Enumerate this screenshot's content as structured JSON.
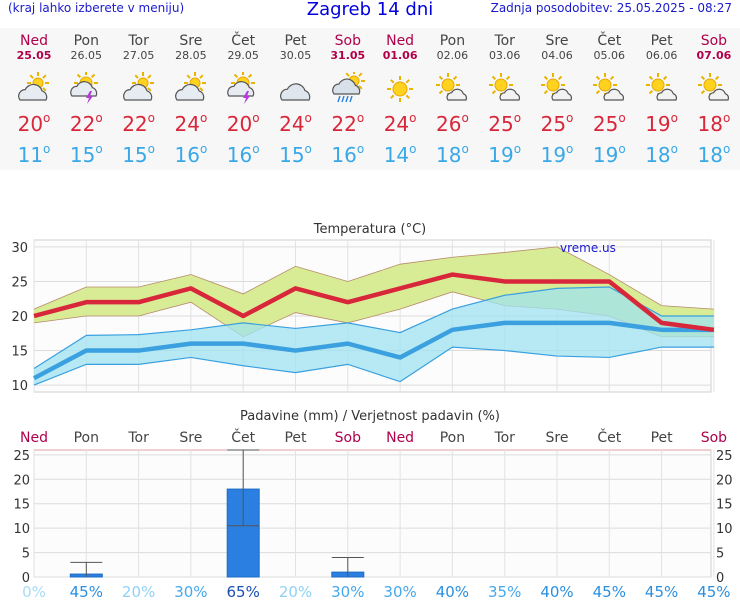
{
  "header": {
    "left_note": "(kraj lahko izberete v meniju)",
    "title": "Zagreb 14 dni",
    "updated": "Zadnja posodobitev: 25.05.2025 - 08:27"
  },
  "days": [
    {
      "name": "Ned",
      "date": "25.05",
      "weekend": true,
      "icon": "partly-cloudy-icon",
      "tmax": "20",
      "tmin": "11"
    },
    {
      "name": "Pon",
      "date": "26.05",
      "weekend": false,
      "icon": "sun-thunderstorm-icon",
      "tmax": "22",
      "tmin": "15"
    },
    {
      "name": "Tor",
      "date": "27.05",
      "weekend": false,
      "icon": "partly-cloudy-icon",
      "tmax": "22",
      "tmin": "15"
    },
    {
      "name": "Sre",
      "date": "28.05",
      "weekend": false,
      "icon": "partly-cloudy-icon",
      "tmax": "24",
      "tmin": "16"
    },
    {
      "name": "Čet",
      "date": "29.05",
      "weekend": false,
      "icon": "sun-thunderstorm-icon",
      "tmax": "20",
      "tmin": "16"
    },
    {
      "name": "Pet",
      "date": "30.05",
      "weekend": false,
      "icon": "cloudy-icon",
      "tmax": "24",
      "tmin": "15"
    },
    {
      "name": "Sob",
      "date": "31.05",
      "weekend": true,
      "icon": "sun-rain-cloud-icon",
      "tmax": "22",
      "tmin": "16"
    },
    {
      "name": "Ned",
      "date": "01.06",
      "weekend": true,
      "icon": "sunny-icon",
      "tmax": "24",
      "tmin": "14"
    },
    {
      "name": "Pon",
      "date": "02.06",
      "weekend": false,
      "icon": "sun-small-cloud-icon",
      "tmax": "26",
      "tmin": "18"
    },
    {
      "name": "Tor",
      "date": "03.06",
      "weekend": false,
      "icon": "sun-small-cloud-icon",
      "tmax": "25",
      "tmin": "19"
    },
    {
      "name": "Sre",
      "date": "04.06",
      "weekend": false,
      "icon": "sun-small-cloud-icon",
      "tmax": "25",
      "tmin": "19"
    },
    {
      "name": "Čet",
      "date": "05.06",
      "weekend": false,
      "icon": "sun-small-cloud-icon",
      "tmax": "25",
      "tmin": "19"
    },
    {
      "name": "Pet",
      "date": "06.06",
      "weekend": false,
      "icon": "sun-small-cloud-icon",
      "tmax": "19",
      "tmin": "18"
    },
    {
      "name": "Sob",
      "date": "07.06",
      "weekend": true,
      "icon": "sun-small-cloud-icon",
      "tmax": "18",
      "tmin": "18"
    }
  ],
  "colors": {
    "tmax": "#d8263a",
    "tmin": "#39a8e6",
    "weekend": "#b0004a",
    "max_band": "#d6ea8f",
    "min_band": "#9fe3f0",
    "overlap": "#86d38a",
    "bar": "#2a7fe0"
  },
  "chart_data": [
    {
      "type": "line",
      "title": "Temperatura (°C)",
      "watermark": "vreme.us",
      "ylim": [
        9,
        31
      ],
      "yticks": [
        10,
        15,
        20,
        25,
        30
      ],
      "grid": true,
      "series": [
        {
          "values": [
            20,
            22,
            22,
            24,
            20,
            24,
            22,
            24,
            26,
            25,
            25,
            25,
            19,
            18
          ],
          "band_low": [
            19,
            20,
            20,
            22,
            17,
            20.5,
            19,
            21,
            23.5,
            21.5,
            21,
            20,
            17,
            17
          ],
          "band_high": [
            21,
            24.2,
            24.2,
            26,
            23.2,
            27.2,
            25,
            27.5,
            28.5,
            29.2,
            30,
            26,
            21.5,
            21
          ]
        },
        {
          "values": [
            11,
            15,
            15,
            16,
            16,
            15,
            16,
            14,
            18,
            19,
            19,
            19,
            18,
            18
          ],
          "band_low": [
            10,
            13,
            13,
            14,
            12.8,
            11.8,
            13,
            10.5,
            15.5,
            15,
            14.2,
            14,
            15.5,
            15.5
          ],
          "band_high": [
            12.4,
            17.2,
            17.3,
            18,
            19,
            18.2,
            19,
            17.6,
            21,
            23,
            24,
            24.2,
            20,
            20
          ]
        }
      ]
    },
    {
      "type": "bar",
      "title": "Padavine (mm) / Verjetnost padavin (%)",
      "ylim": [
        0,
        26
      ],
      "yticks": [
        0,
        5,
        10,
        15,
        20,
        25
      ],
      "values": [
        0,
        0.6,
        0,
        0,
        18,
        0,
        1,
        0,
        0,
        0,
        0,
        0,
        0,
        0
      ],
      "error_high": [
        0,
        3,
        0,
        0,
        26,
        0,
        4,
        0,
        0,
        0,
        0,
        0,
        0,
        0
      ],
      "error_low": [
        0,
        0,
        0,
        0,
        10.5,
        0,
        0,
        0,
        0,
        0,
        0,
        0,
        0,
        0
      ],
      "probabilities": [
        "0%",
        "45%",
        "20%",
        "30%",
        "65%",
        "20%",
        "30%",
        "30%",
        "40%",
        "35%",
        "40%",
        "45%",
        "45%",
        "45%"
      ]
    }
  ]
}
